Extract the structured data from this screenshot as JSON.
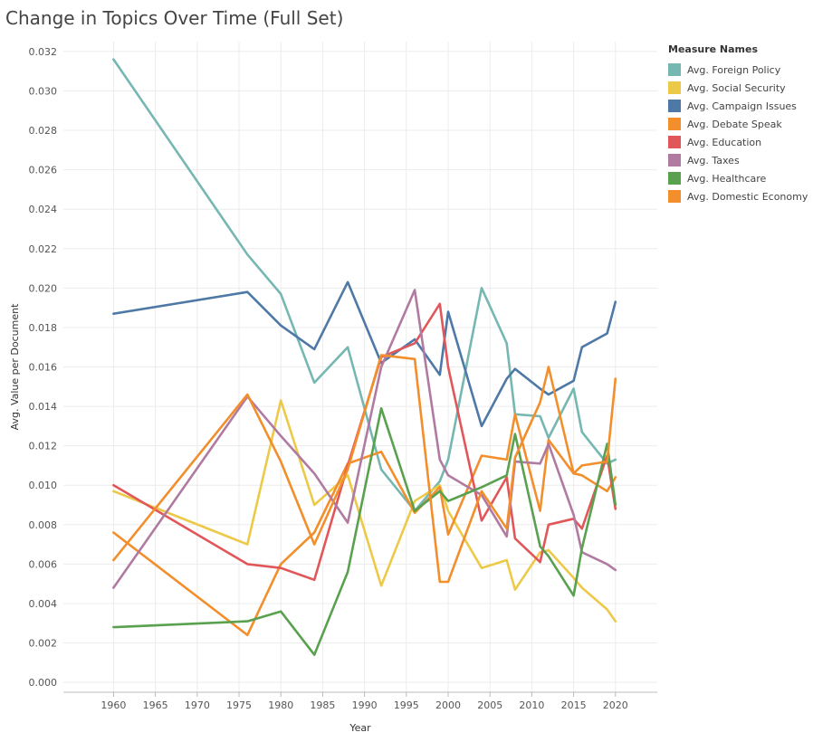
{
  "chart_data": {
    "type": "line",
    "title": "Change in Topics Over Time (Full Set)",
    "xlabel": "Year",
    "ylabel": "Avg. Value per Document",
    "xlim": [
      1954,
      2025
    ],
    "ylim": [
      -0.0005,
      0.0325
    ],
    "x_ticks": [
      1960,
      1965,
      1970,
      1975,
      1980,
      1985,
      1990,
      1995,
      2000,
      2005,
      2010,
      2015,
      2020
    ],
    "y_ticks": [
      0.0,
      0.002,
      0.004,
      0.006,
      0.008,
      0.01,
      0.012,
      0.014,
      0.016,
      0.018,
      0.02,
      0.022,
      0.024,
      0.026,
      0.028,
      0.03,
      0.032
    ],
    "y_tick_labels": [
      "0.000",
      "0.002",
      "0.004",
      "0.006",
      "0.008",
      "0.010",
      "0.012",
      "0.014",
      "0.016",
      "0.018",
      "0.020",
      "0.022",
      "0.024",
      "0.026",
      "0.028",
      "0.030",
      "0.032"
    ],
    "grid": true,
    "legend": {
      "title": "Measure Names",
      "placement": "right"
    },
    "x": [
      1960,
      1976,
      1980,
      1984,
      1988,
      1992,
      1996,
      1999,
      2000,
      2004,
      2007,
      2008,
      2011,
      2012,
      2015,
      2016,
      2019,
      2020
    ],
    "series": [
      {
        "name": "Avg. Foreign Policy",
        "color": "#76b7b2",
        "values": [
          0.0316,
          0.0217,
          0.0197,
          0.0152,
          0.017,
          0.0108,
          0.0087,
          0.0102,
          0.0113,
          0.02,
          0.0172,
          0.0136,
          0.0135,
          0.0124,
          0.0149,
          0.0127,
          0.0111,
          0.0113
        ]
      },
      {
        "name": "Avg. Social Security",
        "color": "#edc948",
        "values": [
          0.0097,
          0.007,
          0.0143,
          0.009,
          0.0105,
          0.0049,
          0.0092,
          0.01,
          0.0087,
          0.0058,
          0.0062,
          0.0047,
          0.0066,
          0.0067,
          0.0053,
          0.0048,
          0.0037,
          0.0031
        ]
      },
      {
        "name": "Avg. Campaign Issues",
        "color": "#4e79a7",
        "values": [
          0.0187,
          0.0198,
          0.0181,
          0.0169,
          0.0203,
          0.0162,
          0.0174,
          0.0156,
          0.0188,
          0.013,
          0.0154,
          0.0159,
          0.0149,
          0.0146,
          0.0153,
          0.017,
          0.0177,
          0.0193
        ]
      },
      {
        "name": "Avg. Debate Speak",
        "color": "#f28e2b",
        "values": [
          0.0076,
          0.0024,
          0.006,
          0.0076,
          0.0111,
          0.0117,
          0.0086,
          0.0099,
          0.0075,
          0.0115,
          0.0113,
          0.0136,
          0.0087,
          0.0123,
          0.0106,
          0.0105,
          0.0097,
          0.0104
        ]
      },
      {
        "name": "Avg. Education",
        "color": "#e15759",
        "values": [
          0.01,
          0.006,
          0.0058,
          0.0052,
          0.011,
          0.0165,
          0.0172,
          0.0192,
          0.016,
          0.0082,
          0.0104,
          0.0073,
          0.0061,
          0.008,
          0.0083,
          0.0078,
          0.0115,
          0.0088
        ]
      },
      {
        "name": "Avg. Taxes",
        "color": "#b07aa1",
        "values": [
          0.0048,
          0.0145,
          0.0125,
          0.0106,
          0.0081,
          0.016,
          0.0199,
          0.0113,
          0.0105,
          0.0095,
          0.0074,
          0.0112,
          0.0111,
          0.0121,
          0.0085,
          0.0066,
          0.006,
          0.0057
        ]
      },
      {
        "name": "Avg. Healthcare",
        "color": "#59a14f",
        "values": [
          0.0028,
          0.0031,
          0.0036,
          0.0014,
          0.0056,
          0.0139,
          0.0087,
          0.0097,
          0.0092,
          0.0099,
          0.0105,
          0.0126,
          0.0069,
          0.0064,
          0.0044,
          0.0068,
          0.0121,
          0.009
        ]
      },
      {
        "name": "Avg. Domestic Economy",
        "color": "#f28e2b",
        "values": [
          0.0062,
          0.0146,
          0.0112,
          0.007,
          0.0108,
          0.0166,
          0.0164,
          0.0051,
          0.0051,
          0.0097,
          0.0078,
          0.0114,
          0.0142,
          0.016,
          0.0106,
          0.011,
          0.0112,
          0.0154
        ]
      }
    ]
  }
}
